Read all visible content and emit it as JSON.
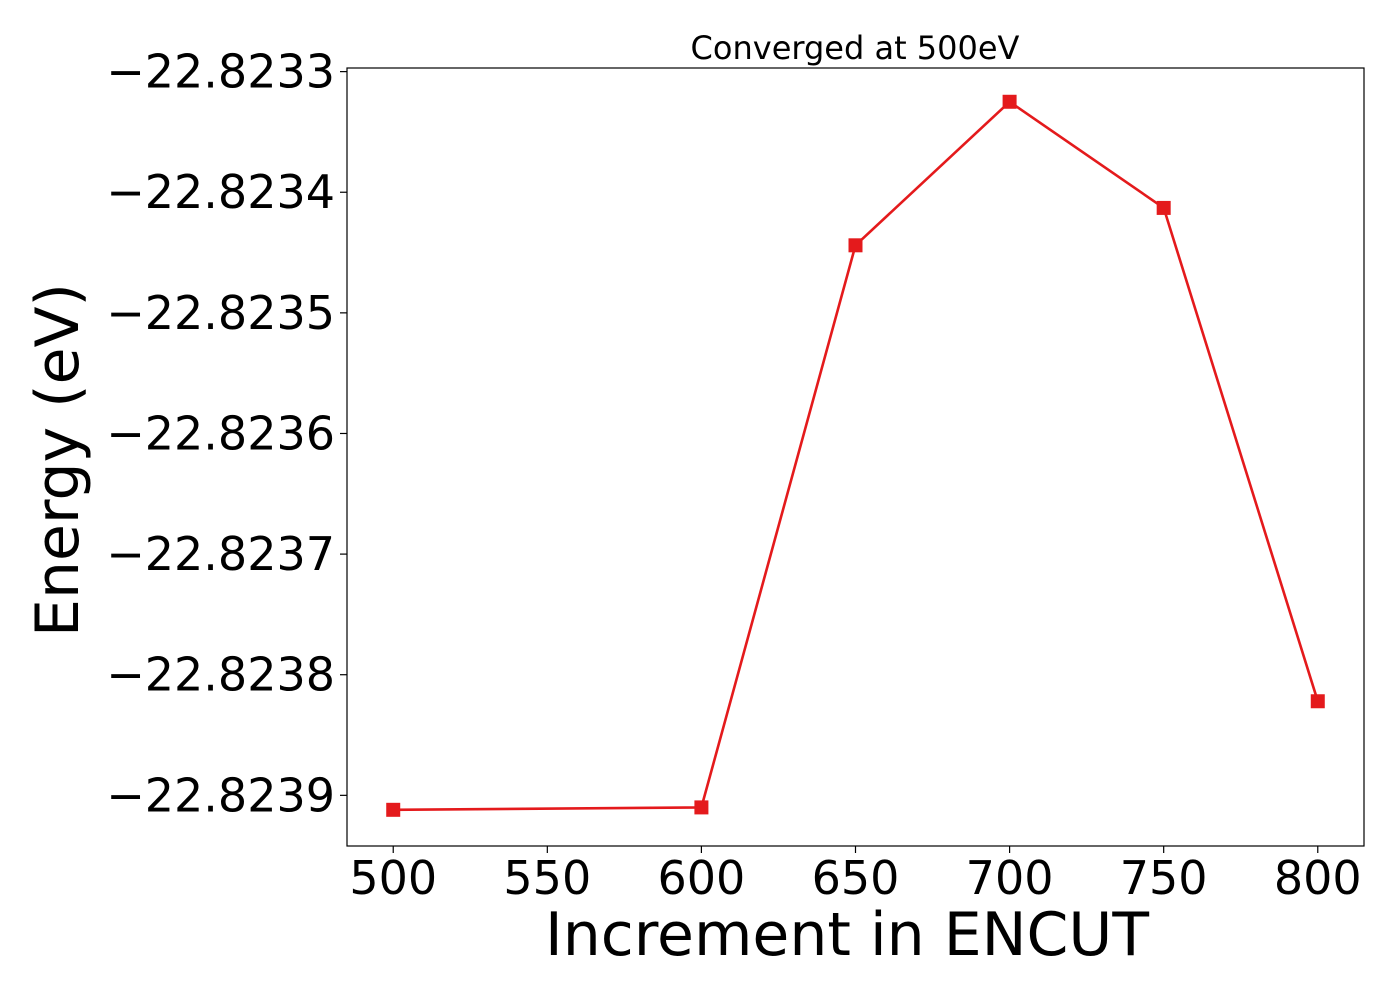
{
  "chart_data": {
    "type": "line",
    "title": "Converged at 500eV",
    "xlabel": "Increment in ENCUT",
    "ylabel": "Energy (eV)",
    "x": [
      500,
      600,
      650,
      700,
      750,
      800
    ],
    "series": [
      {
        "values": [
          -22.823912,
          -22.82391,
          -22.823444,
          -22.823325,
          -22.823413,
          -22.823822
        ]
      }
    ],
    "xlim": [
      485,
      815
    ],
    "ylim": [
      -22.823942,
      -22.823297
    ],
    "xticks": [
      500,
      550,
      600,
      650,
      700,
      750,
      800
    ],
    "xtick_labels": [
      "500",
      "550",
      "600",
      "650",
      "700",
      "750",
      "800"
    ],
    "yticks": [
      -22.8239,
      -22.8238,
      -22.8237,
      -22.8236,
      -22.8235,
      -22.8234,
      -22.8233
    ],
    "ytick_labels": [
      "−22.8239",
      "−22.8238",
      "−22.8237",
      "−22.8236",
      "−22.8235",
      "−22.8234",
      "−22.8233"
    ],
    "marker": "square",
    "colors": {
      "series": "#e41a1c",
      "axes": "#000000"
    },
    "grid": false,
    "legend": "none"
  }
}
